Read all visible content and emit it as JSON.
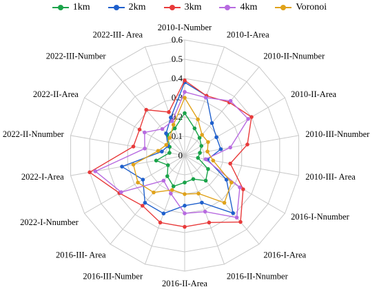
{
  "chart_data": {
    "type": "radar",
    "title": "",
    "rlim": [
      0,
      0.6
    ],
    "r_ticks": [
      "0",
      "0.1",
      "0.2",
      "0.3",
      "0.4",
      "0.5",
      "0.6"
    ],
    "grid": true,
    "legend_position": "top",
    "categories": [
      "2010-I-Number",
      "2010-I-Area",
      "2010-II-Nnumber",
      "2010-II-Area",
      "2010-III-Nnumber",
      "2010-III- Area",
      "2016-I-Nnumber",
      "2016-I-Area",
      "2016-II-Nnumber",
      "2016-II-Area",
      "2016-III-Number",
      "2016-III- Area",
      "2022-I-Nnumber",
      "2022-I-Area",
      "2022-II-Nnumber",
      "2022-II-Area",
      "2022-III-Number",
      "2022-III- Area"
    ],
    "series": [
      {
        "name": "1km",
        "color": "#1aa34a",
        "values": [
          0.22,
          0.15,
          0.12,
          0.1,
          0.08,
          0.07,
          0.14,
          0.17,
          0.13,
          0.14,
          0.17,
          0.14,
          0.1,
          0.15,
          0.08,
          0.09,
          0.14,
          0.15
        ]
      },
      {
        "name": "2km",
        "color": "#1e5fcc",
        "values": [
          0.38,
          0.33,
          0.22,
          0.19,
          0.19,
          0.12,
          0.25,
          0.39,
          0.26,
          0.26,
          0.32,
          0.32,
          0.25,
          0.33,
          0.12,
          0.1,
          0.15,
          0.21
        ]
      },
      {
        "name": "3km",
        "color": "#e83a3a",
        "values": [
          0.39,
          0.33,
          0.36,
          0.4,
          0.33,
          0.24,
          0.35,
          0.45,
          0.37,
          0.37,
          0.37,
          0.34,
          0.39,
          0.5,
          0.27,
          0.27,
          0.31,
          0.24
        ]
      },
      {
        "name": "4km",
        "color": "#b76ae0",
        "values": [
          0.33,
          0.32,
          0.37,
          0.38,
          0.24,
          0.11,
          0.33,
          0.42,
          0.31,
          0.3,
          0.21,
          0.17,
          0.38,
          0.47,
          0.21,
          0.24,
          0.18,
          0.19
        ]
      },
      {
        "name": "Voronoi",
        "color": "#e0a21a",
        "values": [
          0.3,
          0.2,
          0.14,
          0.14,
          0.12,
          0.15,
          0.28,
          0.32,
          0.21,
          0.2,
          0.19,
          0.25,
          0.28,
          0.27,
          0.14,
          0.11,
          0.12,
          0.17
        ]
      }
    ]
  }
}
